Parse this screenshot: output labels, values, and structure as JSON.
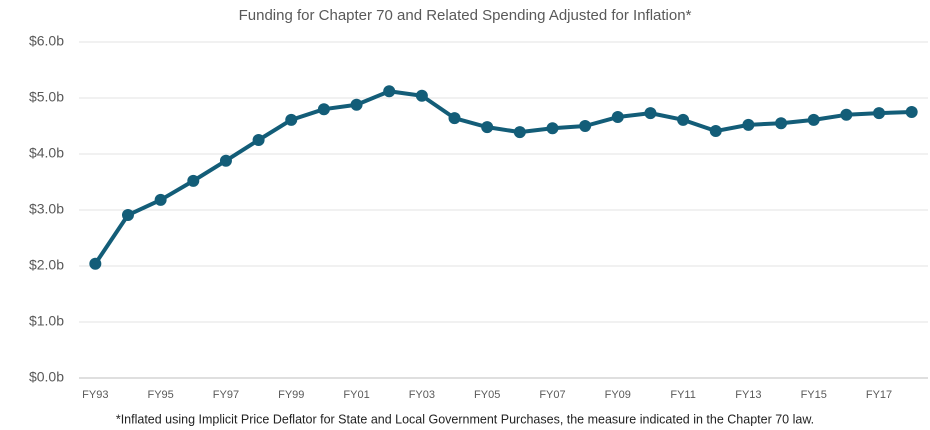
{
  "chart_data": {
    "type": "line",
    "title": "Funding for Chapter 70 and Related Spending Adjusted for Inflation*",
    "footnote": "*Inflated using Implicit Price Deflator for State and Local Government Purchases, the measure indicated in the Chapter 70 law.",
    "categories": [
      "FY93",
      null,
      "FY95",
      null,
      "FY97",
      null,
      "FY99",
      null,
      "FY01",
      null,
      "FY03",
      null,
      "FY05",
      null,
      "FY07",
      null,
      "FY09",
      null,
      "FY11",
      null,
      "FY13",
      null,
      "FY15",
      null,
      "FY17",
      null
    ],
    "series": [
      {
        "color": "#135d78",
        "values": [
          2.04,
          2.91,
          3.18,
          3.52,
          3.88,
          4.25,
          4.61,
          4.8,
          4.88,
          5.12,
          5.04,
          4.64,
          4.48,
          4.39,
          4.46,
          4.5,
          4.66,
          4.73,
          4.61,
          4.41,
          4.52,
          4.55,
          4.61,
          4.7,
          4.73,
          4.75
        ]
      }
    ],
    "ylim": [
      0,
      6
    ],
    "yticks": [
      {
        "value": 0,
        "label": "$0.0b"
      },
      {
        "value": 1,
        "label": "$1.0b"
      },
      {
        "value": 2,
        "label": "$2.0b"
      },
      {
        "value": 3,
        "label": "$3.0b"
      },
      {
        "value": 4,
        "label": "$4.0b"
      },
      {
        "value": 5,
        "label": "$5.0b"
      },
      {
        "value": 6,
        "label": "$6.0b"
      }
    ],
    "grid": true
  }
}
